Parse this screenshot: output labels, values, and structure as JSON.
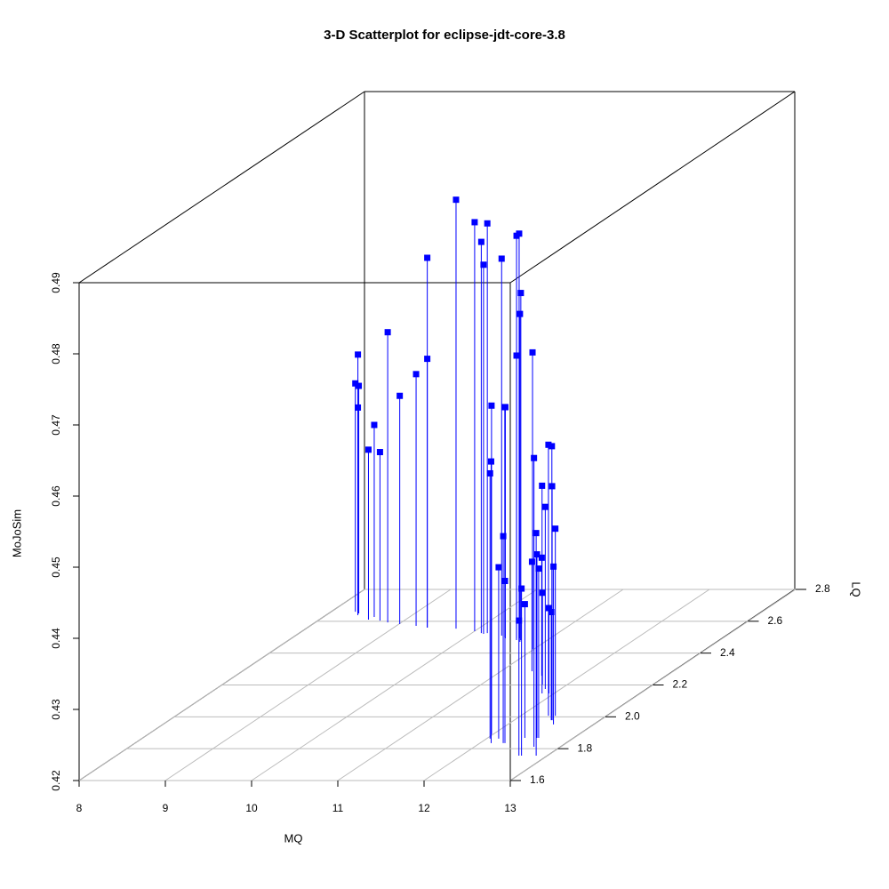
{
  "chart_data": {
    "type": "scatter3d",
    "title": "3-D Scatterplot for eclipse-jdt-core-3.8",
    "x_label": "MQ",
    "y_label": "LQ",
    "z_label": "MoJoSim",
    "color": "#0000ff",
    "xlim": [
      8,
      13
    ],
    "ylim": [
      1.6,
      2.8
    ],
    "zlim": [
      0.42,
      0.49
    ],
    "xticks": [
      8,
      9,
      10,
      11,
      12,
      13
    ],
    "yticks": [
      1.6,
      1.8,
      {
        "value": 2,
        "label": "2.0"
      },
      2.2,
      2.4,
      2.6,
      2.8
    ],
    "zticks": [
      0.42,
      0.43,
      0.44,
      0.45,
      0.46,
      0.47,
      0.48,
      0.49
    ],
    "grid": true,
    "x": [
      8.34,
      8.28,
      8.35,
      8.37,
      8.59,
      8.57,
      8.72,
      8.84,
      9.01,
      9.23,
      9.39,
      9.39,
      9.74,
      10.0,
      10.18,
      10.11,
      10.15,
      10.39,
      10.61,
      10.64,
      10.69,
      10.71,
      10.64,
      10.46,
      10.48,
      10.98,
      11.98,
      12.13,
      12.04,
      12.69,
      12.32,
      12.36,
      11.86,
      11.82,
      12.44,
      12.27,
      12.87,
      12.14,
      12.4,
      12.57,
      12.29,
      12.53,
      12.59,
      11.55,
      11.94,
      12.43,
      11.36,
      12.7,
      12.67,
      12.43,
      11.71
    ],
    "y": [
      2.649,
      2.66,
      2.649,
      2.638,
      2.627,
      2.61,
      2.604,
      2.593,
      2.582,
      2.571,
      2.56,
      2.56,
      2.554,
      2.538,
      2.526,
      2.526,
      2.521,
      2.51,
      2.493,
      2.493,
      2.482,
      2.471,
      2.482,
      2.498,
      2.493,
      2.426,
      1.891,
      1.835,
      1.863,
      1.812,
      2.007,
      2.007,
      2.147,
      2.175,
      1.979,
      1.835,
      1.756,
      1.863,
      2.007,
      1.868,
      1.835,
      1.952,
      1.868,
      2.258,
      2.147,
      1.979,
      2.286,
      1.756,
      1.756,
      1.868,
      2.203
    ],
    "z": [
      0.4564,
      0.4521,
      0.452,
      0.4492,
      0.447,
      0.4439,
      0.4437,
      0.4608,
      0.4521,
      0.4554,
      0.472,
      0.4578,
      0.4803,
      0.4775,
      0.4776,
      0.475,
      0.4719,
      0.473,
      0.4766,
      0.4769,
      0.4688,
      0.4661,
      0.46,
      0.4524,
      0.4525,
      0.4617,
      0.4662,
      0.4596,
      0.4573,
      0.4606,
      0.4581,
      0.4579,
      0.4492,
      0.4456,
      0.4529,
      0.4491,
      0.4513,
      0.4441,
      0.4463,
      0.4458,
      0.4428,
      0.4422,
      0.4438,
      0.4366,
      0.432,
      0.4352,
      0.4354,
      0.4435,
      0.439,
      0.4388,
      0.4329
    ]
  }
}
